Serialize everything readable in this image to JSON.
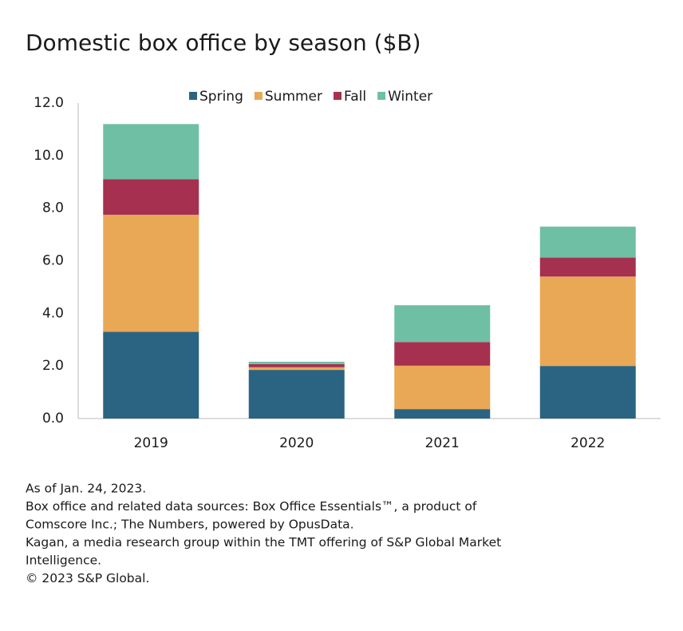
{
  "chart_data": {
    "type": "stacked-bar",
    "title": "Domestic box office by season ($B)",
    "categories": [
      "2019",
      "2020",
      "2021",
      "2022"
    ],
    "series": [
      {
        "name": "Spring",
        "color": "#2a6482",
        "values": [
          3.3,
          1.85,
          0.36,
          2.0
        ]
      },
      {
        "name": "Summer",
        "color": "#e9a855",
        "values": [
          4.45,
          0.1,
          1.65,
          3.4
        ]
      },
      {
        "name": "Fall",
        "color": "#a6304f",
        "values": [
          1.35,
          0.12,
          0.9,
          0.72
        ]
      },
      {
        "name": "Winter",
        "color": "#6fbfa4",
        "values": [
          2.1,
          0.09,
          1.4,
          1.18
        ]
      }
    ],
    "ylim": [
      0,
      12
    ],
    "yticks": [
      {
        "value": 0,
        "label": "0.0"
      },
      {
        "value": 2,
        "label": "2.0"
      },
      {
        "value": 4,
        "label": "4.0"
      },
      {
        "value": 6,
        "label": "6.0"
      },
      {
        "value": 8,
        "label": "8.0"
      },
      {
        "value": 10,
        "label": "10.0"
      },
      {
        "value": 12,
        "label": "12.0"
      }
    ],
    "grid": false,
    "legend": "top",
    "notes": [
      "As of Jan. 24, 2023.",
      "Box office and related data sources: Box Office Essentials™, a product of",
      "Comscore Inc.; The Numbers, powered by OpusData.",
      "Kagan, a media research group within the TMT offering of S&P Global Market",
      "Intelligence.",
      "© 2023 S&P Global."
    ]
  }
}
